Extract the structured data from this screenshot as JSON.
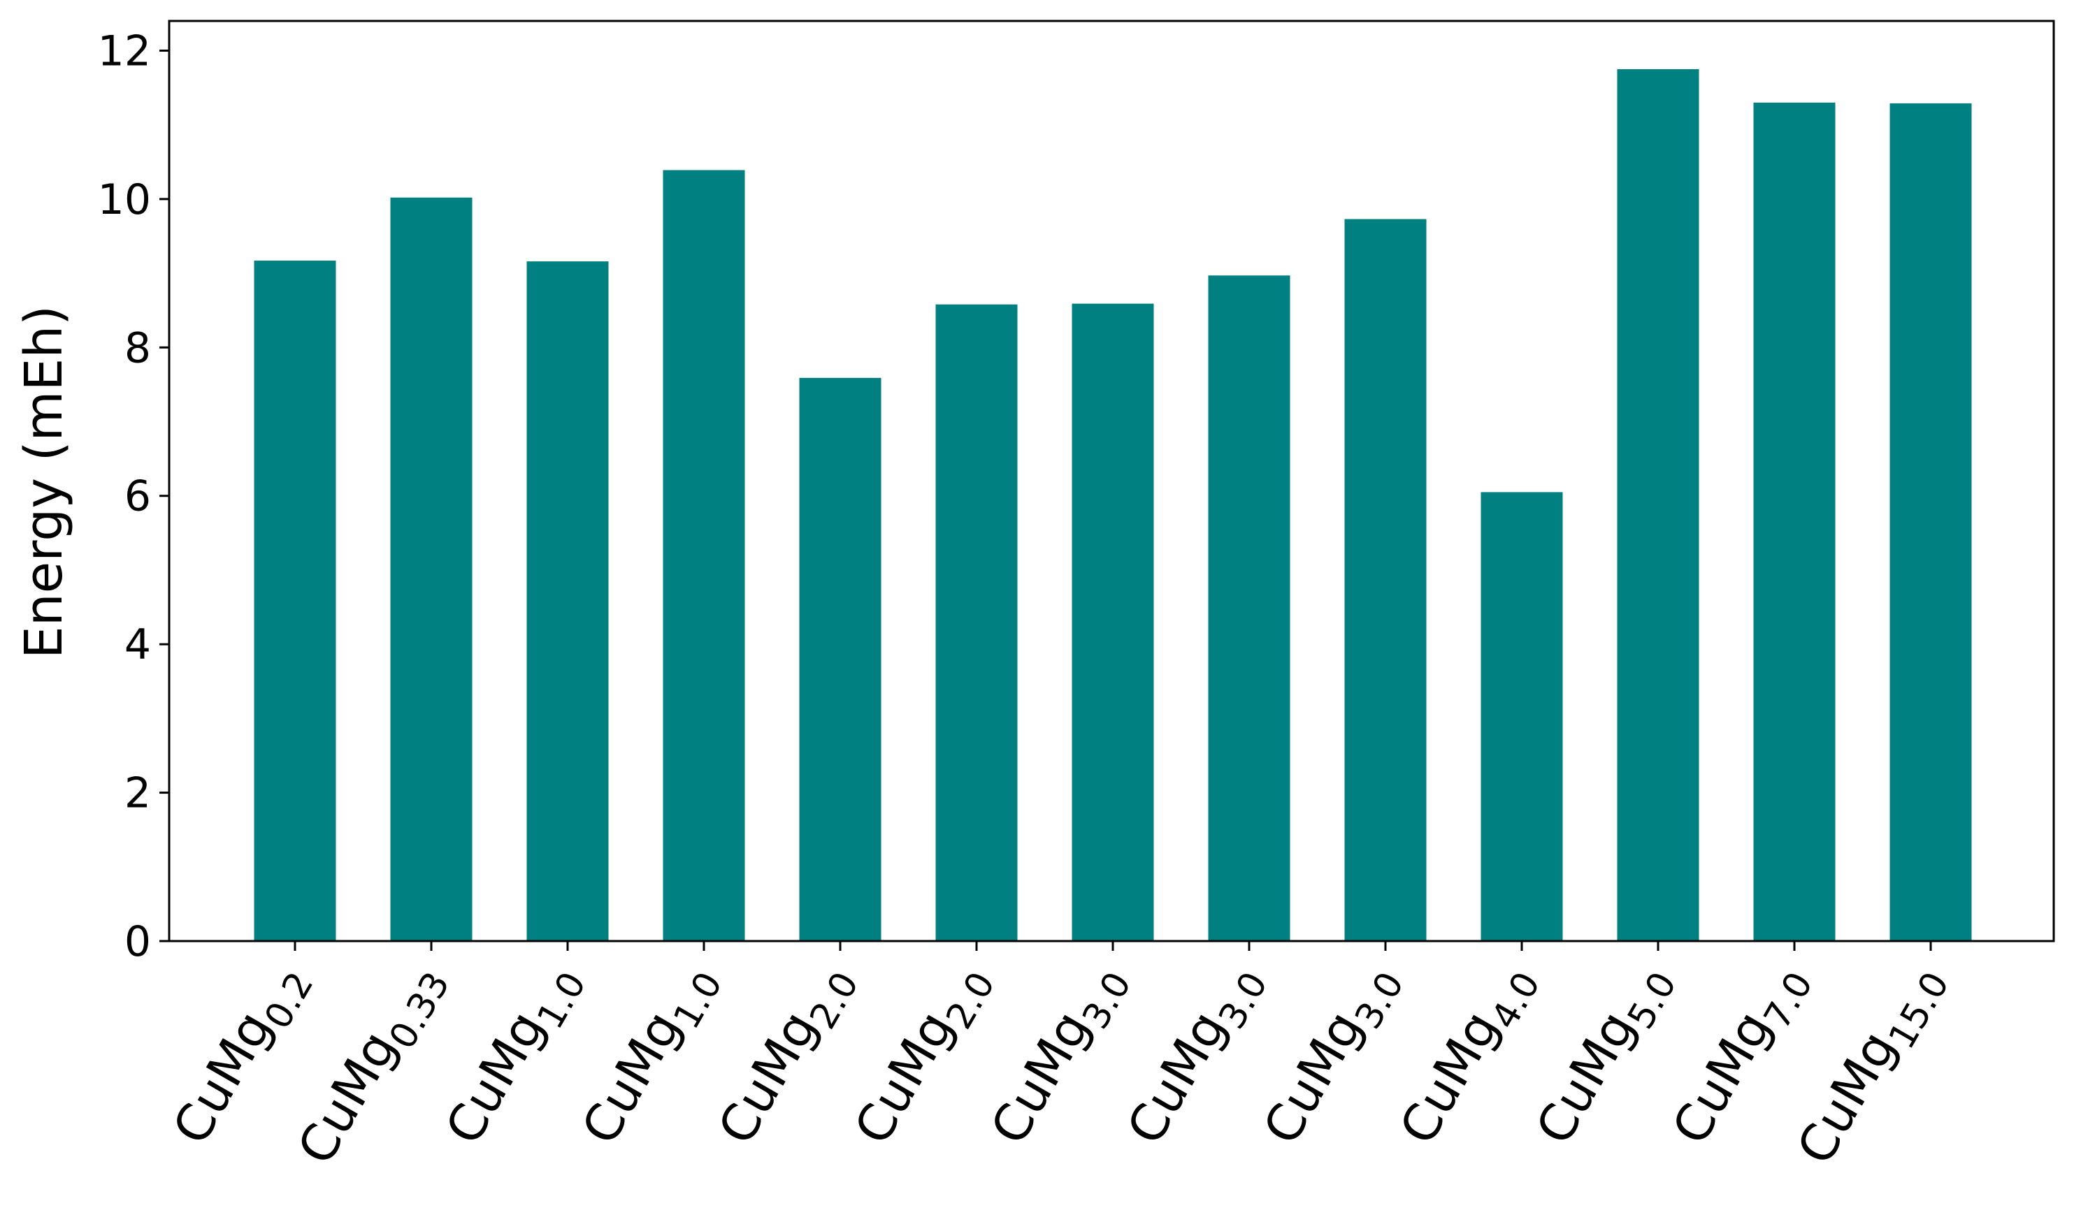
{
  "chart_data": {
    "type": "bar",
    "title": "",
    "xlabel": "",
    "ylabel": "Energy (mEh)",
    "ylim": [
      0,
      12.4
    ],
    "yticks": [
      0,
      2,
      4,
      6,
      8,
      10,
      12
    ],
    "ytick_labels": [
      "0",
      "2",
      "4",
      "6",
      "8",
      "10",
      "12"
    ],
    "grid": false,
    "legend": "none",
    "bar_color": "#008080",
    "categories": [
      {
        "base": "CuMg",
        "sub": "0.2"
      },
      {
        "base": "CuMg",
        "sub": "0.33"
      },
      {
        "base": "CuMg",
        "sub": "1.0"
      },
      {
        "base": "CuMg",
        "sub": "1.0"
      },
      {
        "base": "CuMg",
        "sub": "2.0"
      },
      {
        "base": "CuMg",
        "sub": "2.0"
      },
      {
        "base": "CuMg",
        "sub": "3.0"
      },
      {
        "base": "CuMg",
        "sub": "3.0"
      },
      {
        "base": "CuMg",
        "sub": "3.0"
      },
      {
        "base": "CuMg",
        "sub": "4.0"
      },
      {
        "base": "CuMg",
        "sub": "5.0"
      },
      {
        "base": "CuMg",
        "sub": "7.0"
      },
      {
        "base": "CuMg",
        "sub": "15.0"
      }
    ],
    "values": [
      9.17,
      10.02,
      9.16,
      10.39,
      7.59,
      8.58,
      8.59,
      8.97,
      9.73,
      6.05,
      11.75,
      11.3,
      11.29
    ]
  }
}
